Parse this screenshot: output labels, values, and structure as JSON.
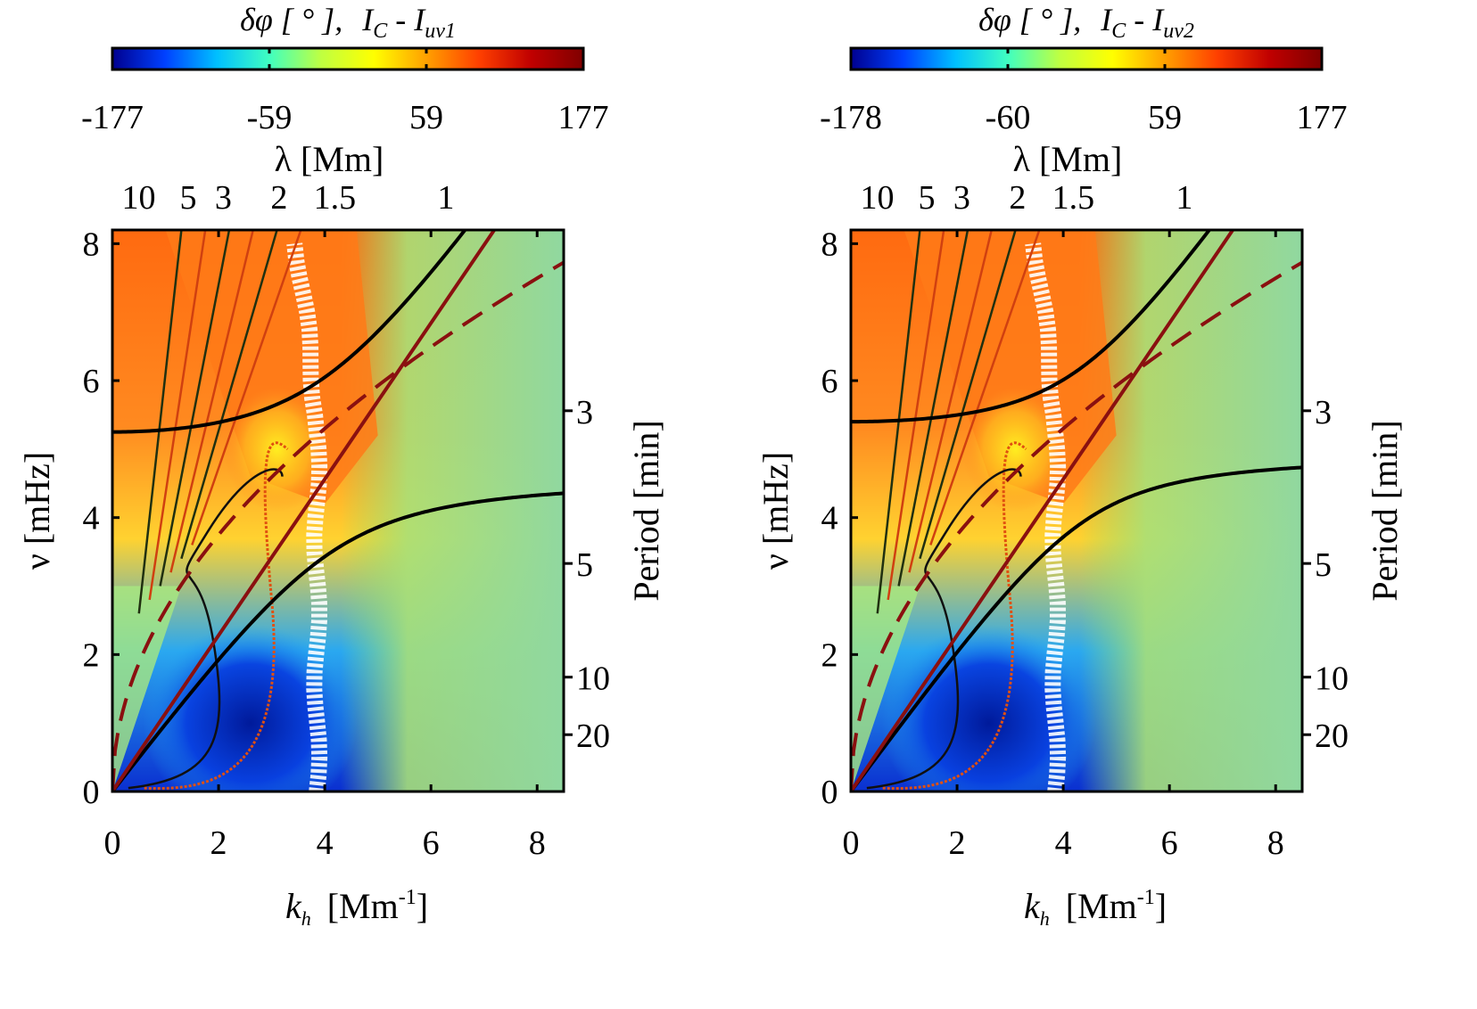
{
  "chart_data": [
    {
      "type": "heatmap",
      "panel": "left",
      "colorbar": {
        "label_main": "δφ [ ° ],",
        "label_sub": "I",
        "label_sub_c": "C",
        "label_dash": " - ",
        "label_sub2": "I",
        "label_sub2_c": "uv1",
        "ticks": [
          "-177",
          "-59",
          "59",
          "177"
        ],
        "range": [
          -177,
          177
        ],
        "colormap": [
          "#00008f",
          "#0040ff",
          "#00c0ff",
          "#40ffc0",
          "#c0ff40",
          "#ffff00",
          "#ffa000",
          "#ff4000",
          "#c00000",
          "#800000"
        ]
      },
      "top_axis": {
        "label": "λ [Mm]",
        "ticks": [
          "10",
          "5",
          "3",
          "2",
          "1.5",
          "1"
        ],
        "values": [
          0.63,
          1.26,
          2.09,
          3.14,
          4.19,
          6.28
        ]
      },
      "x_axis": {
        "label": "k",
        "label_sub": "h",
        "label_unit": "[Mm",
        "label_exp": "-1",
        "label_close": "]",
        "ticks": [
          "0",
          "2",
          "4",
          "6",
          "8"
        ],
        "values": [
          0,
          2,
          4,
          6,
          8
        ],
        "xlim": [
          0,
          8.5
        ]
      },
      "y_axis": {
        "label": "ν [mHz]",
        "ticks": [
          "0",
          "2",
          "4",
          "6",
          "8"
        ],
        "values": [
          0,
          2,
          4,
          6,
          8
        ],
        "ylim": [
          0,
          8.2
        ]
      },
      "right_axis": {
        "label": "Period [min]",
        "ticks": [
          "3",
          "5",
          "10",
          "20"
        ],
        "values": [
          5.56,
          3.33,
          1.67,
          0.83
        ]
      },
      "curves": {
        "upper_black": {
          "asymptote_mhz": 5.25
        },
        "lower_black": {
          "asymptote_mhz": 4.55
        },
        "lamb_line_slope": 1.14,
        "dashed_fmode_coef": 2.65
      }
    },
    {
      "type": "heatmap",
      "panel": "right",
      "colorbar": {
        "label_main": "δφ [ ° ],",
        "label_sub": "I",
        "label_sub_c": "C",
        "label_dash": " - ",
        "label_sub2": "I",
        "label_sub2_c": "uv2",
        "ticks": [
          "-178",
          "-60",
          "59",
          "177"
        ],
        "range": [
          -178,
          177
        ],
        "colormap": [
          "#00008f",
          "#0040ff",
          "#00c0ff",
          "#40ffc0",
          "#c0ff40",
          "#ffff00",
          "#ffa000",
          "#ff4000",
          "#c00000",
          "#800000"
        ]
      },
      "top_axis": {
        "label": "λ [Mm]",
        "ticks": [
          "10",
          "5",
          "3",
          "2",
          "1.5",
          "1"
        ],
        "values": [
          0.63,
          1.26,
          2.09,
          3.14,
          4.19,
          6.28
        ]
      },
      "x_axis": {
        "label": "k",
        "label_sub": "h",
        "label_unit": "[Mm",
        "label_exp": "-1",
        "label_close": "]",
        "ticks": [
          "0",
          "2",
          "4",
          "6",
          "8"
        ],
        "values": [
          0,
          2,
          4,
          6,
          8
        ],
        "xlim": [
          0,
          8.5
        ]
      },
      "y_axis": {
        "label": "ν [mHz]",
        "ticks": [
          "0",
          "2",
          "4",
          "6",
          "8"
        ],
        "values": [
          0,
          2,
          4,
          6,
          8
        ],
        "ylim": [
          0,
          8.2
        ]
      },
      "right_axis": {
        "label": "Period [min]",
        "ticks": [
          "3",
          "5",
          "10",
          "20"
        ],
        "values": [
          5.56,
          3.33,
          1.67,
          0.83
        ]
      },
      "curves": {
        "upper_black": {
          "asymptote_mhz": 5.4
        },
        "lower_black": {
          "asymptote_mhz": 4.9
        },
        "lamb_line_slope": 1.14,
        "dashed_fmode_coef": 2.65
      }
    }
  ]
}
